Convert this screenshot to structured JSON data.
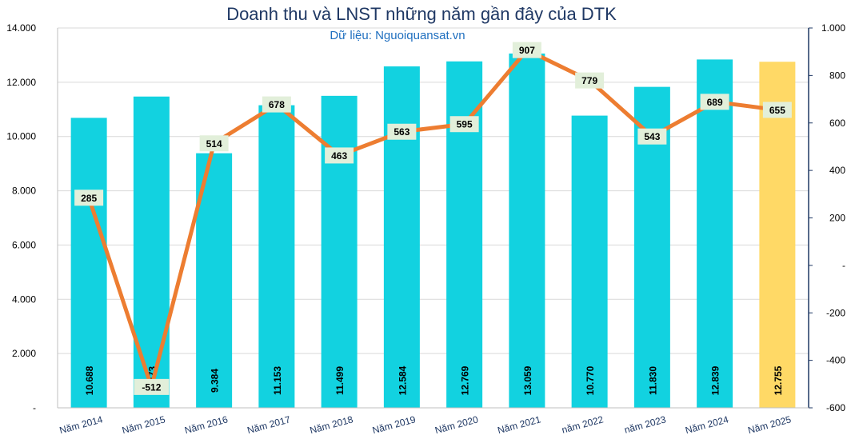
{
  "chart_data": {
    "type": "bar",
    "title": "Doanh thu và LNST những năm gần đây của DTK",
    "subtitle": "Dữ liệu: Nguoiquansat.vn",
    "categories": [
      "Năm 2014",
      "Năm 2015",
      "Năm 2016",
      "Năm 2017",
      "Năm 2018",
      "Năm 2019",
      "Năm 2020",
      "Năm 2021",
      "năm 2022",
      "năm 2023",
      "Năm 2024",
      "Năm 2025"
    ],
    "series": [
      {
        "type": "bar",
        "axis": "left",
        "values": [
          10688,
          11473,
          9384,
          11153,
          11499,
          12584,
          12769,
          13059,
          10770,
          11830,
          12839,
          12755
        ],
        "labels": [
          "10.688",
          "11.473",
          "9.384",
          "11.153",
          "11.499",
          "12.584",
          "12.769",
          "13.059",
          "10.770",
          "11.830",
          "12.839",
          "12.755"
        ],
        "color": "#12d2e0",
        "highlight_color": "#ffd966",
        "highlight_index": 11
      },
      {
        "type": "line",
        "axis": "right",
        "values": [
          285,
          -512,
          514,
          678,
          463,
          563,
          595,
          907,
          779,
          543,
          689,
          655
        ],
        "labels": [
          "285",
          "-512",
          "514",
          "678",
          "463",
          "563",
          "595",
          "907",
          "779",
          "543",
          "689",
          "655"
        ],
        "color": "#ed7d31",
        "label_bg": "#e2efda"
      }
    ],
    "y_left": {
      "min": 0,
      "max": 14000,
      "ticks": [
        0,
        2000,
        4000,
        6000,
        8000,
        10000,
        12000,
        14000
      ],
      "tick_labels": [
        "-",
        "2.000",
        "4.000",
        "6.000",
        "8.000",
        "10.000",
        "12.000",
        "14.000"
      ]
    },
    "y_right": {
      "min": -600,
      "max": 1000,
      "ticks": [
        -600,
        -400,
        -200,
        0,
        200,
        400,
        600,
        800,
        1000
      ],
      "tick_labels": [
        "-600",
        "-400",
        "-200",
        "-",
        "200",
        "400",
        "600",
        "800",
        "1.000"
      ]
    },
    "grid": true,
    "legend": "none"
  }
}
